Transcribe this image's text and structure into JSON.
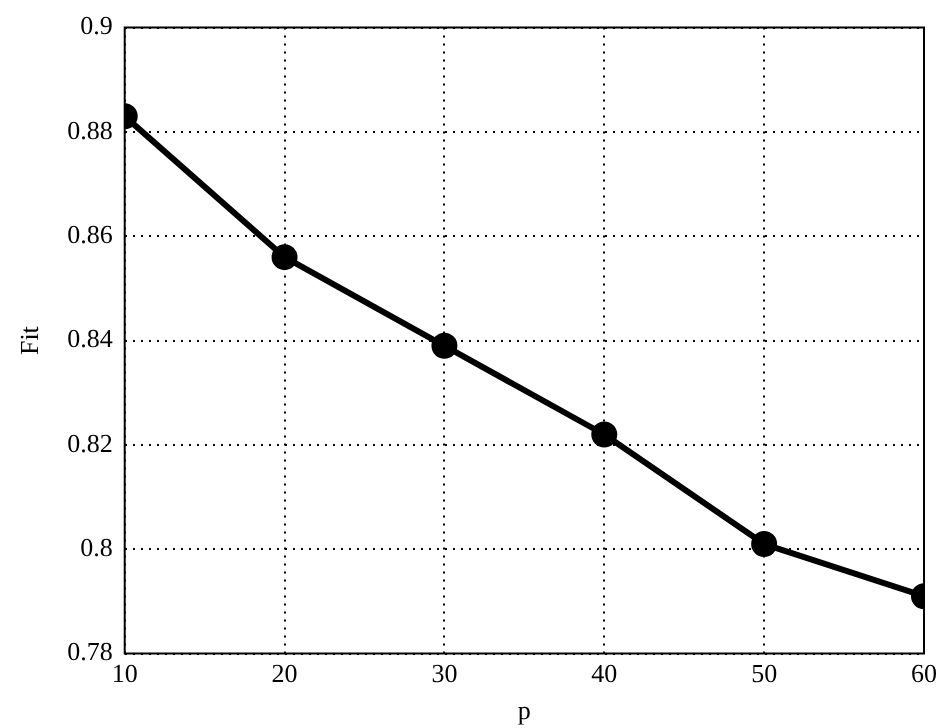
{
  "chart_data": {
    "type": "line",
    "xlabel": "p",
    "ylabel": "Fit",
    "x": [
      10,
      20,
      30,
      40,
      50,
      60
    ],
    "series": [
      {
        "color": "#000000",
        "values": [
          0.883,
          0.856,
          0.839,
          0.822,
          0.801,
          0.791
        ]
      }
    ],
    "xlim": [
      10,
      60
    ],
    "xticks": [
      10,
      20,
      30,
      40,
      50,
      60
    ],
    "ylim": [
      0.78,
      0.9
    ],
    "yticks": [
      0.78,
      0.8,
      0.82,
      0.84,
      0.86,
      0.88,
      0.9
    ],
    "grid": true,
    "marker": "circle",
    "line_style": "solid",
    "legend": false
  }
}
